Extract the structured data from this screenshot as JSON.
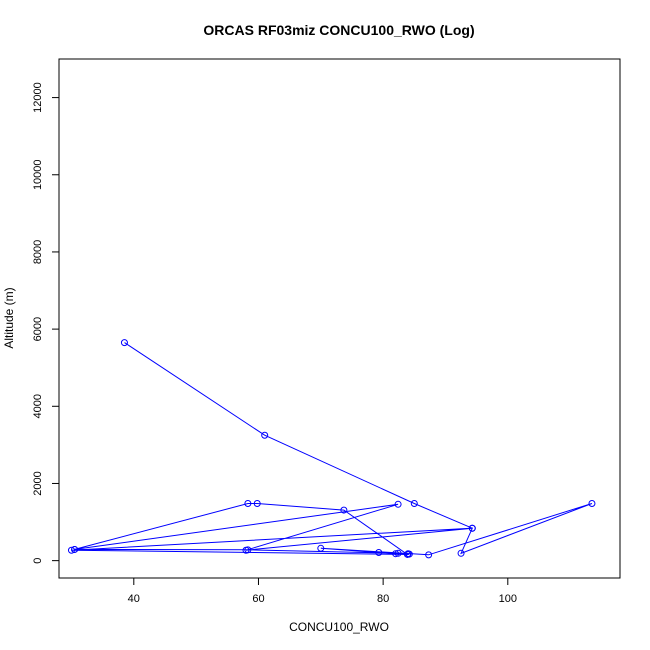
{
  "chart_data": {
    "type": "scatter",
    "title": "ORCAS RF03miz CONCU100_RWO (Log)",
    "xlabel": "CONCU100_RWO",
    "ylabel": "Altitude (m)",
    "xlim": [
      28,
      118
    ],
    "ylim": [
      -450,
      13000
    ],
    "xticks": [
      40,
      60,
      80,
      100
    ],
    "yticks": [
      0,
      2000,
      4000,
      6000,
      8000,
      10000,
      12000
    ],
    "grid": false,
    "color": "#0000ff",
    "markers": "open-circle",
    "connect_points": true,
    "series": [
      {
        "x": [
          38.5,
          61.0,
          85.0,
          94.3,
          58.0,
          82.4,
          30.5,
          58.3,
          59.8,
          73.7,
          83.9,
          30.0,
          94.3,
          92.5,
          113.5,
          87.3,
          70.0,
          79.3,
          82.0,
          84.0,
          84.2,
          82.4,
          58.3,
          30.5
        ],
        "y": [
          5650,
          3250,
          1480,
          840,
          270,
          1460,
          290,
          1480,
          1480,
          1310,
          160,
          270,
          840,
          190,
          1480,
          150,
          320,
          210,
          180,
          180,
          170,
          190,
          280,
          290
        ]
      }
    ]
  }
}
